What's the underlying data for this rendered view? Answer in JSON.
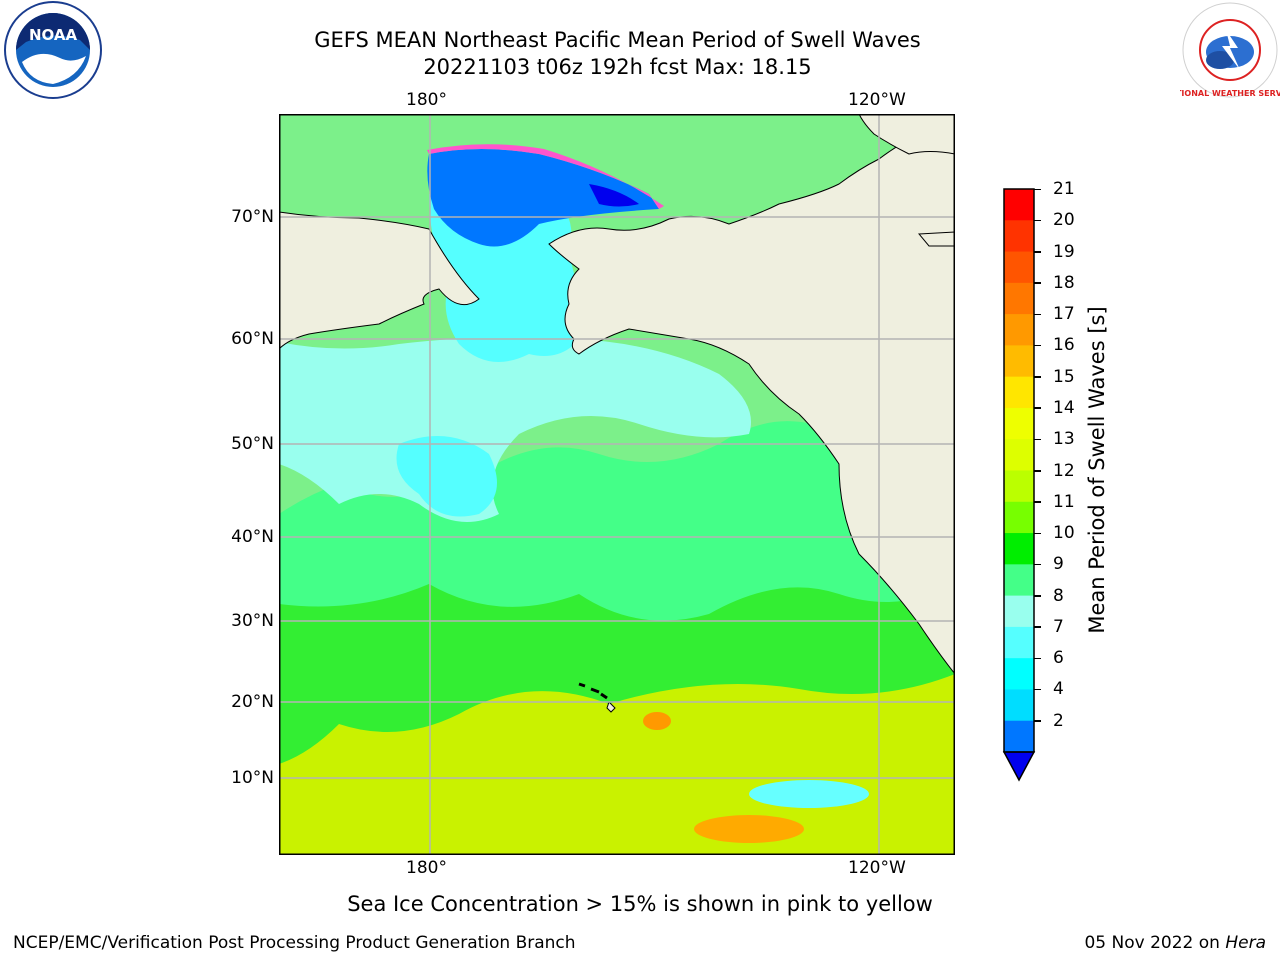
{
  "title": {
    "line1": "GEFS MEAN Northeast Pacific Mean Period of Swell Waves",
    "line2": "20221103 t06z 192h fcst   Max: 18.15"
  },
  "map": {
    "lon_labels_top": [
      "180°",
      "120°W"
    ],
    "lon_labels_bottom": [
      "180°",
      "120°W"
    ],
    "lat_labels": [
      "70°N",
      "60°N",
      "50°N",
      "40°N",
      "30°N",
      "20°N",
      "10°N"
    ],
    "land_color": "#efefdf",
    "grid_color": "#b4b4b4"
  },
  "colorbar": {
    "label": "Mean Period of Swell Waves [s]",
    "ticks": [
      "21",
      "20",
      "19",
      "18",
      "17",
      "16",
      "15",
      "14",
      "13",
      "12",
      "11",
      "10",
      "9",
      "8",
      "7",
      "6",
      "4",
      "2"
    ],
    "colors_top_to_bottom": [
      "#ff0000",
      "#ff3300",
      "#ff5500",
      "#ff7700",
      "#ff9900",
      "#ffbb00",
      "#ffe600",
      "#eeff00",
      "#ddff00",
      "#bbff00",
      "#77ff00",
      "#00ee00",
      "#44ff88",
      "#99ffee",
      "#55ffff",
      "#00ffff",
      "#00ddff",
      "#0077ff"
    ],
    "extend_color": "#0000ee"
  },
  "logos": {
    "left": "NOAA",
    "right": "NATIONAL WEATHER SERVICE"
  },
  "ice_note": "Sea Ice Concentration > 15% is shown in pink to yellow",
  "footer": {
    "left": "NCEP/EMC/Verification Post Processing Product Generation Branch",
    "date": "05 Nov 2022 on",
    "machine": "Hera"
  }
}
